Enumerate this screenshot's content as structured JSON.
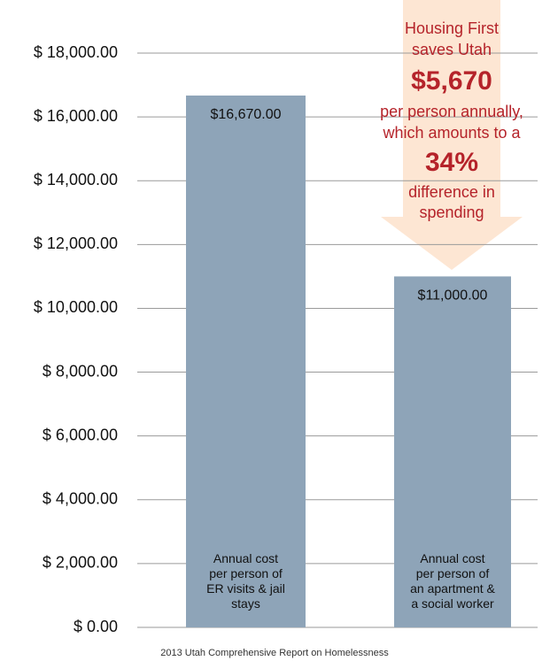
{
  "chart_data": {
    "type": "bar",
    "categories": [
      "Annual cost\nper person of\nER visits & jail\nstays",
      "Annual cost\nper person of\nan apartment &\na social worker"
    ],
    "values": [
      16670,
      11000
    ],
    "value_labels": [
      "$16,670.00",
      "$11,000.00"
    ],
    "color": "#8ea4b8",
    "ylim": [
      0,
      18000
    ],
    "yticks": [
      {
        "value": 0,
        "label": "$ 0.00"
      },
      {
        "value": 2000,
        "label": "$ 2,000.00"
      },
      {
        "value": 4000,
        "label": "$ 4,000.00"
      },
      {
        "value": 6000,
        "label": "$ 6,000.00"
      },
      {
        "value": 8000,
        "label": "$ 8,000.00"
      },
      {
        "value": 10000,
        "label": "$ 10,000.00"
      },
      {
        "value": 12000,
        "label": "$ 12,000.00"
      },
      {
        "value": 14000,
        "label": "$ 14,000.00"
      },
      {
        "value": 16000,
        "label": "$ 16,000.00"
      },
      {
        "value": 18000,
        "label": "$ 18,000.00"
      }
    ],
    "grid": true,
    "annotation": [
      "Housing First",
      "saves Utah",
      "$5,670",
      "per person annually,",
      "which amounts to a",
      "34%",
      "difference in",
      "spending"
    ],
    "source": "2013 Utah Comprehensive Report on Homelessness"
  }
}
